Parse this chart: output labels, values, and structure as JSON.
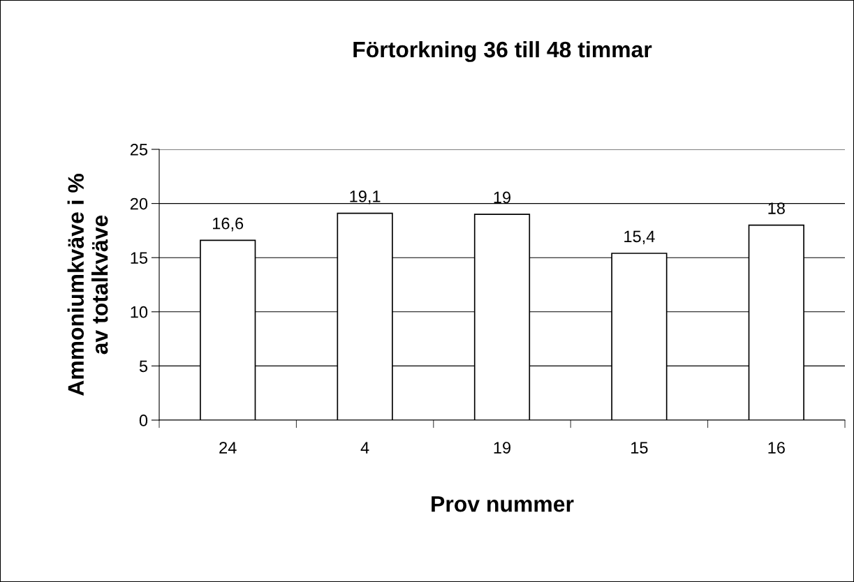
{
  "chart_data": {
    "type": "bar",
    "title": "Förtorkning 36 till 48 timmar",
    "xlabel": "Prov nummer",
    "ylabel": "Ammoniumkväve i %\nav totalkväve",
    "categories": [
      "24",
      "4",
      "19",
      "15",
      "16"
    ],
    "values": [
      16.6,
      19.1,
      19,
      15.4,
      18
    ],
    "value_labels": [
      "16,6",
      "19,1",
      "19",
      "15,4",
      "18"
    ],
    "color": "#ffffff",
    "ylim": [
      0,
      25
    ],
    "yticks": [
      0,
      5,
      10,
      15,
      20,
      25
    ],
    "grid": "y"
  }
}
